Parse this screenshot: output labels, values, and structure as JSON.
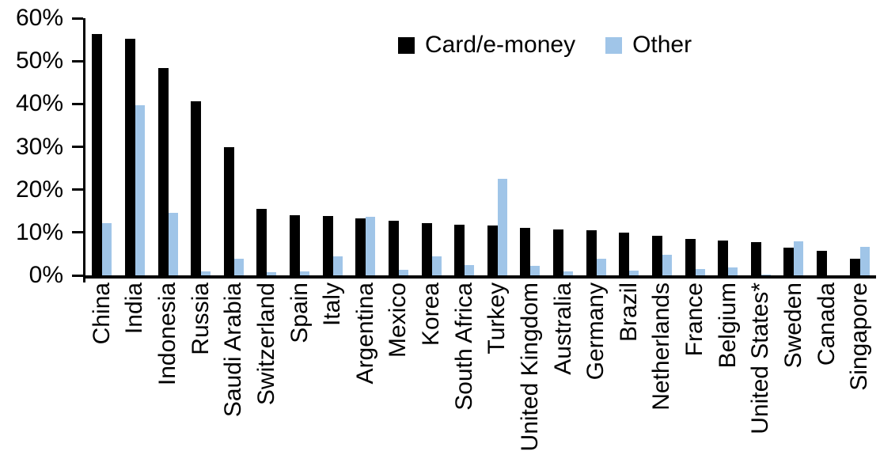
{
  "chart_data": {
    "type": "bar",
    "title": "",
    "xlabel": "",
    "ylabel": "",
    "categories": [
      "China",
      "India",
      "Indonesia",
      "Russia",
      "Saudi Arabia",
      "Switzerland",
      "Spain",
      "Italy",
      "Argentina",
      "Mexico",
      "Korea",
      "South Africa",
      "Turkey",
      "United Kingdom",
      "Australia",
      "Germany",
      "Brazil",
      "Netherlands",
      "France",
      "Belgium",
      "United States*",
      "Sweden",
      "Canada",
      "Singapore"
    ],
    "series": [
      {
        "name": "Card/e-money",
        "color": "#000000",
        "values": [
          56.3,
          55.2,
          48.3,
          40.6,
          29.9,
          15.5,
          14.1,
          13.9,
          13.3,
          12.8,
          12.2,
          11.8,
          11.6,
          11.0,
          10.8,
          10.5,
          9.9,
          9.2,
          8.5,
          8.1,
          7.7,
          6.5,
          5.8,
          3.9
        ]
      },
      {
        "name": "Other",
        "color": "#A0C5E8",
        "values": [
          12.2,
          39.7,
          14.6,
          1.0,
          3.8,
          0.7,
          0.9,
          4.5,
          13.7,
          1.3,
          4.5,
          2.4,
          22.5,
          2.2,
          0.9,
          3.9,
          1.1,
          4.8,
          1.5,
          1.9,
          0.2,
          8.0,
          0.0,
          6.6
        ]
      }
    ],
    "ylim": [
      0,
      60
    ],
    "ytick_values": [
      60,
      50,
      40,
      30,
      20,
      10,
      0
    ],
    "ytick_labels": [
      "60%",
      "50%",
      "40%",
      "30%",
      "20%",
      "10%",
      "0%"
    ],
    "grid": false,
    "legend_position": "top-center",
    "axis_color": "#000000"
  }
}
